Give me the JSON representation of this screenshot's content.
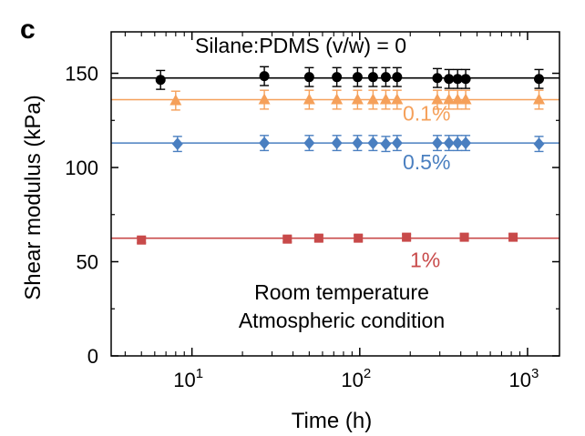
{
  "panel_label": "c",
  "chart_data": {
    "type": "scatter",
    "xscale": "log",
    "xlabel": "Time (h)",
    "ylabel": "Shear modulus (kPa)",
    "xlim": [
      3.3,
      1550
    ],
    "ylim": [
      0,
      172
    ],
    "yticks": [
      0,
      50,
      100,
      150
    ],
    "ytick_labels": [
      "0",
      "50",
      "100",
      "150"
    ],
    "xticks": [
      10,
      100,
      1000
    ],
    "xtick_labels": [
      {
        "base": "10",
        "exp": "1"
      },
      {
        "base": "10",
        "exp": "2"
      },
      {
        "base": "10",
        "exp": "3"
      }
    ],
    "grid": false,
    "series": [
      {
        "name": "Silane:PDMS (v/w) = 0",
        "color": "#000000",
        "marker": "circle",
        "fit": 147.5,
        "points": [
          {
            "x": 6.5,
            "y": 146.5,
            "err": 5
          },
          {
            "x": 27,
            "y": 148.5,
            "err": 5
          },
          {
            "x": 50,
            "y": 148,
            "err": 5
          },
          {
            "x": 73,
            "y": 148,
            "err": 5
          },
          {
            "x": 97,
            "y": 148,
            "err": 5
          },
          {
            "x": 120,
            "y": 148,
            "err": 5
          },
          {
            "x": 143,
            "y": 148,
            "err": 5
          },
          {
            "x": 167,
            "y": 148,
            "err": 5
          },
          {
            "x": 290,
            "y": 147.5,
            "err": 5
          },
          {
            "x": 340,
            "y": 147,
            "err": 5
          },
          {
            "x": 383,
            "y": 147,
            "err": 5
          },
          {
            "x": 428,
            "y": 147,
            "err": 5
          },
          {
            "x": 1170,
            "y": 147,
            "err": 5
          }
        ]
      },
      {
        "name": "0.1%",
        "color": "#f5a05a",
        "marker": "triangle",
        "fit": 136,
        "points": [
          {
            "x": 8,
            "y": 135.5,
            "err": 5
          },
          {
            "x": 27,
            "y": 136,
            "err": 5
          },
          {
            "x": 50,
            "y": 136,
            "err": 5
          },
          {
            "x": 73,
            "y": 136,
            "err": 5
          },
          {
            "x": 97,
            "y": 136,
            "err": 5
          },
          {
            "x": 120,
            "y": 136,
            "err": 5
          },
          {
            "x": 143,
            "y": 136,
            "err": 5
          },
          {
            "x": 167,
            "y": 136,
            "err": 5
          },
          {
            "x": 290,
            "y": 136,
            "err": 5
          },
          {
            "x": 340,
            "y": 136,
            "err": 5
          },
          {
            "x": 383,
            "y": 136,
            "err": 5
          },
          {
            "x": 428,
            "y": 136,
            "err": 5
          },
          {
            "x": 1170,
            "y": 136,
            "err": 5
          }
        ]
      },
      {
        "name": "0.5%",
        "color": "#4a7fc0",
        "marker": "diamond",
        "fit": 113,
        "points": [
          {
            "x": 8.2,
            "y": 112.5,
            "err": 4
          },
          {
            "x": 27,
            "y": 113,
            "err": 4
          },
          {
            "x": 50,
            "y": 113,
            "err": 4
          },
          {
            "x": 73,
            "y": 113,
            "err": 4
          },
          {
            "x": 97,
            "y": 113,
            "err": 4
          },
          {
            "x": 120,
            "y": 113,
            "err": 4
          },
          {
            "x": 143,
            "y": 112.5,
            "err": 4
          },
          {
            "x": 167,
            "y": 113,
            "err": 4
          },
          {
            "x": 290,
            "y": 113,
            "err": 4
          },
          {
            "x": 340,
            "y": 113,
            "err": 4
          },
          {
            "x": 383,
            "y": 113,
            "err": 4
          },
          {
            "x": 428,
            "y": 113,
            "err": 4
          },
          {
            "x": 1170,
            "y": 112.5,
            "err": 4
          }
        ]
      },
      {
        "name": "1%",
        "color": "#c84a4a",
        "marker": "square",
        "fit": 62.5,
        "points": [
          {
            "x": 5,
            "y": 61.5,
            "err": 1.5
          },
          {
            "x": 37,
            "y": 62,
            "err": 1.5
          },
          {
            "x": 57,
            "y": 62.5,
            "err": 1.5
          },
          {
            "x": 98,
            "y": 62.5,
            "err": 1.5
          },
          {
            "x": 190,
            "y": 63,
            "err": 1.5
          },
          {
            "x": 420,
            "y": 63,
            "err": 1.5
          },
          {
            "x": 820,
            "y": 63,
            "err": 1.5
          }
        ]
      }
    ],
    "annotations": [
      {
        "text": "Silane:PDMS (v/w) = 0",
        "color": "#000000",
        "x": 12,
        "y": 161
      },
      {
        "text": "0.1%",
        "color": "#f5a05a",
        "x": 220,
        "y": 125
      },
      {
        "text": "0.5%",
        "color": "#4a7fc0",
        "x": 220,
        "y": 99
      },
      {
        "text": "1%",
        "color": "#c84a4a",
        "x": 220,
        "y": 47
      },
      {
        "text": "Room temperature",
        "color": "#000000",
        "x": 100,
        "y": 30
      },
      {
        "text": "Atmospheric condition",
        "color": "#000000",
        "x": 100,
        "y": 15
      }
    ]
  }
}
